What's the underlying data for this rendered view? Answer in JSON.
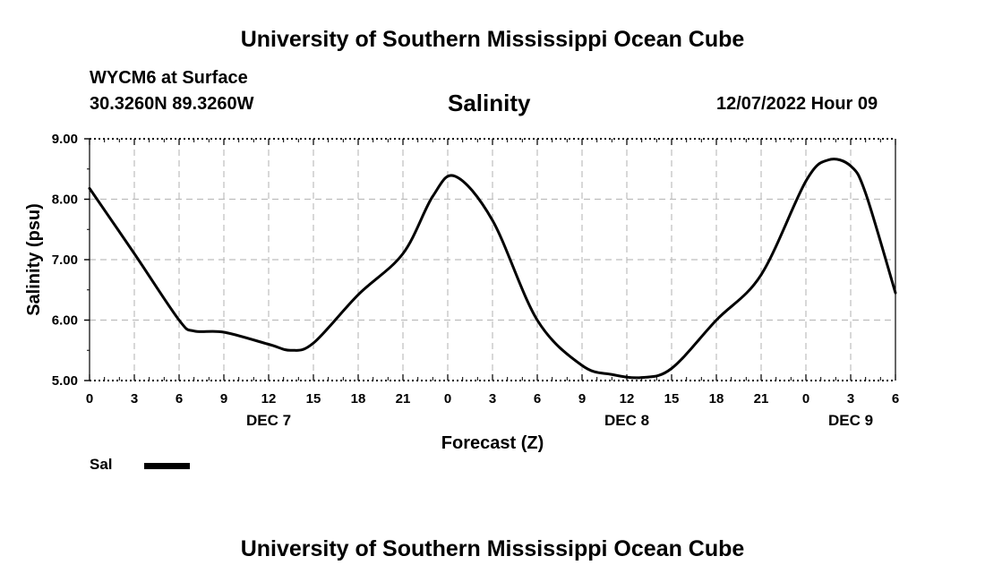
{
  "header": {
    "title": "University of Southern Mississippi Ocean Cube",
    "station": "WYCM6 at Surface",
    "coordinates": "30.3260N  89.3260W",
    "chart_title": "Salinity",
    "datetime": "12/07/2022 Hour 09"
  },
  "footer": {
    "title": "University of Southern Mississippi Ocean Cube"
  },
  "legend": {
    "label": "Sal"
  },
  "chart_data": {
    "type": "line",
    "title": "Salinity",
    "xlabel": "Forecast (Z)",
    "ylabel": "Salinity (psu)",
    "xlim": [
      0,
      54
    ],
    "ylim": [
      5.0,
      9.0
    ],
    "x_ticks": [
      0,
      3,
      6,
      9,
      12,
      15,
      18,
      21,
      24,
      27,
      30,
      33,
      36,
      39,
      42,
      45,
      48,
      51,
      54
    ],
    "x_tick_labels": [
      "0",
      "3",
      "6",
      "9",
      "12",
      "15",
      "18",
      "21",
      "0",
      "3",
      "6",
      "9",
      "12",
      "15",
      "18",
      "21",
      "0",
      "3",
      "6"
    ],
    "y_ticks": [
      5,
      6,
      7,
      8,
      9
    ],
    "y_tick_labels": [
      "5.00",
      "6.00",
      "7.00",
      "8.00",
      "9.00"
    ],
    "day_labels": [
      {
        "x": 12,
        "label": "DEC 7"
      },
      {
        "x": 36,
        "label": "DEC 8"
      },
      {
        "x": 51,
        "label": "DEC 9"
      }
    ],
    "grid": true,
    "series": [
      {
        "name": "Sal",
        "color": "#000000",
        "x": [
          0,
          3,
          6,
          7,
          9,
          12,
          13.5,
          15,
          18,
          21,
          23,
          24.5,
          27,
          30,
          33,
          35,
          37,
          39,
          42,
          45,
          48,
          49.5,
          51,
          52,
          54
        ],
        "values": [
          8.18,
          7.1,
          6.0,
          5.82,
          5.8,
          5.6,
          5.5,
          5.62,
          6.42,
          7.1,
          8.05,
          8.38,
          7.65,
          6.0,
          5.25,
          5.1,
          5.05,
          5.2,
          6.0,
          6.75,
          8.3,
          8.65,
          8.55,
          8.1,
          6.45
        ]
      }
    ]
  }
}
